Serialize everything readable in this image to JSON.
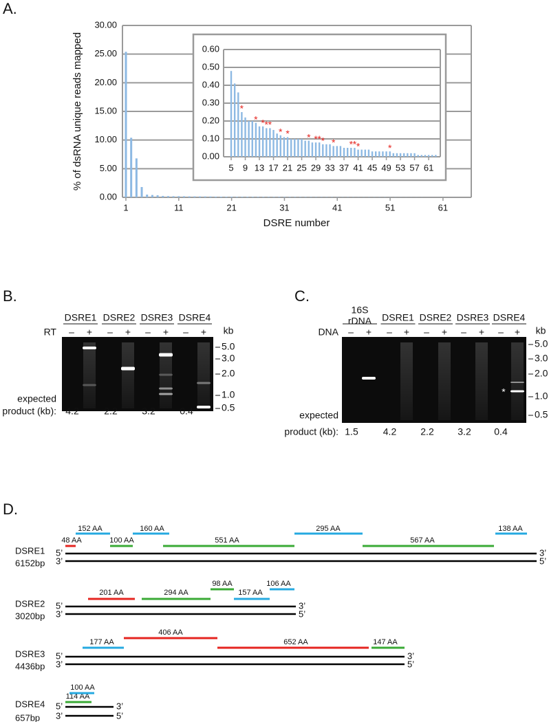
{
  "panels": {
    "a": "A.",
    "b": "B.",
    "c": "C.",
    "d": "D."
  },
  "chart_data": [
    {
      "type": "bar",
      "ylabel": "% of dsRNA unique reads mapped",
      "xlabel": "DSRE number",
      "color": "#8db9e3",
      "grid": true,
      "x": [
        1,
        2,
        3,
        4,
        5,
        6,
        7,
        8,
        9,
        10,
        11,
        12,
        13,
        14,
        15,
        16,
        17,
        18,
        19,
        20,
        21,
        22,
        23,
        24,
        25,
        26,
        27,
        28,
        29,
        30,
        31,
        32,
        33,
        34,
        35,
        36,
        37,
        38,
        39,
        40,
        41,
        42,
        43,
        44,
        45,
        46,
        47,
        48,
        49,
        50,
        51,
        52,
        53,
        54,
        55,
        56,
        57,
        58,
        59,
        60,
        61,
        62,
        63
      ],
      "values": [
        25.4,
        10.4,
        6.8,
        1.8,
        0.48,
        0.41,
        0.36,
        0.25,
        0.22,
        0.2,
        0.2,
        0.19,
        0.17,
        0.17,
        0.16,
        0.16,
        0.15,
        0.13,
        0.12,
        0.11,
        0.11,
        0.1,
        0.1,
        0.1,
        0.1,
        0.09,
        0.09,
        0.08,
        0.08,
        0.08,
        0.07,
        0.07,
        0.07,
        0.06,
        0.06,
        0.06,
        0.05,
        0.05,
        0.05,
        0.05,
        0.04,
        0.04,
        0.04,
        0.04,
        0.03,
        0.03,
        0.03,
        0.03,
        0.03,
        0.03,
        0.02,
        0.02,
        0.02,
        0.02,
        0.02,
        0.02,
        0.02,
        0.01,
        0.01,
        0.01,
        0.01,
        0.01,
        0.01
      ],
      "xlim": [
        0.35,
        66.35
      ],
      "xticks": [
        1,
        11,
        21,
        31,
        41,
        51,
        61
      ],
      "ylim": [
        0,
        30
      ],
      "yticks": [
        {
          "value": 0,
          "label": "0.00"
        },
        {
          "value": 5,
          "label": "5.00"
        },
        {
          "value": 10,
          "label": "10.00"
        },
        {
          "value": 15,
          "label": "15.00"
        },
        {
          "value": 20,
          "label": "20.00"
        },
        {
          "value": 25,
          "label": "25.00"
        },
        {
          "value": 30,
          "label": "30.00"
        }
      ]
    },
    {
      "type": "bar",
      "color": "#8db9e3",
      "grid": true,
      "x": [
        5,
        6,
        7,
        8,
        9,
        10,
        11,
        12,
        13,
        14,
        15,
        16,
        17,
        18,
        19,
        20,
        21,
        22,
        23,
        24,
        25,
        26,
        27,
        28,
        29,
        30,
        31,
        32,
        33,
        34,
        35,
        36,
        37,
        38,
        39,
        40,
        41,
        42,
        43,
        44,
        45,
        46,
        47,
        48,
        49,
        50,
        51,
        52,
        53,
        54,
        55,
        56,
        57,
        58,
        59,
        60,
        61,
        62,
        63
      ],
      "values": [
        0.48,
        0.41,
        0.36,
        0.25,
        0.22,
        0.2,
        0.2,
        0.19,
        0.17,
        0.17,
        0.16,
        0.16,
        0.15,
        0.13,
        0.12,
        0.11,
        0.11,
        0.1,
        0.1,
        0.1,
        0.1,
        0.09,
        0.09,
        0.08,
        0.08,
        0.08,
        0.07,
        0.07,
        0.07,
        0.06,
        0.06,
        0.06,
        0.05,
        0.05,
        0.05,
        0.05,
        0.04,
        0.04,
        0.04,
        0.04,
        0.03,
        0.03,
        0.03,
        0.03,
        0.03,
        0.03,
        0.02,
        0.02,
        0.02,
        0.02,
        0.02,
        0.02,
        0.02,
        0.01,
        0.01,
        0.01,
        0.01,
        0.01,
        0.01
      ],
      "xlim": [
        2.85,
        64.3
      ],
      "xticks": [
        5,
        9,
        13,
        17,
        21,
        25,
        29,
        33,
        37,
        41,
        45,
        49,
        53,
        57,
        61
      ],
      "ylim": [
        0,
        0.6
      ],
      "yticks": [
        {
          "value": 0,
          "label": "0.00"
        },
        {
          "value": 0.1,
          "label": "0.10"
        },
        {
          "value": 0.2,
          "label": "0.20"
        },
        {
          "value": 0.3,
          "label": "0.30"
        },
        {
          "value": 0.4,
          "label": "0.40"
        },
        {
          "value": 0.5,
          "label": "0.50"
        },
        {
          "value": 0.6,
          "label": "0.60"
        }
      ],
      "asterisks": {
        "label": "*",
        "color": "#e52520",
        "x": [
          8,
          12,
          14,
          15,
          16,
          19,
          21,
          27,
          29,
          30,
          31,
          34,
          39,
          40,
          41,
          50
        ]
      }
    }
  ],
  "gels": [
    {
      "lane_label": "RT",
      "minus": "–",
      "plus": "+",
      "unit": "kb",
      "markers": [
        "5.0",
        "3.0",
        "2.0",
        "1.0",
        "0.5"
      ],
      "expected_label": [
        "expected",
        "product (kb):"
      ],
      "groups": [
        {
          "name": [
            "DSRE1"
          ],
          "expected": "4.2"
        },
        {
          "name": [
            "DSRE2"
          ],
          "expected": "2.2"
        },
        {
          "name": [
            "DSRE3"
          ],
          "expected": "3.2"
        },
        {
          "name": [
            "DSRE4"
          ],
          "expected": "0.4"
        }
      ]
    },
    {
      "lane_label": "DNA",
      "minus": "–",
      "plus": "+",
      "unit": "kb",
      "markers": [
        "5.0",
        "3.0",
        "2.0",
        "1.0",
        "0.5"
      ],
      "expected_label": [
        "expected",
        "product (kb):"
      ],
      "note": "*",
      "groups": [
        {
          "name": [
            "16S",
            "rDNA"
          ],
          "expected": "1.5"
        },
        {
          "name": [
            "DSRE1"
          ],
          "expected": "4.2"
        },
        {
          "name": [
            "DSRE2"
          ],
          "expected": "2.2"
        },
        {
          "name": [
            "DSRE3"
          ],
          "expected": "3.2"
        },
        {
          "name": [
            "DSRE4"
          ],
          "expected": "0.4"
        }
      ]
    }
  ],
  "strand_ends": {
    "five": "5’",
    "three": "3’"
  },
  "diagrams": [
    {
      "name": "DSRE1",
      "length": "6152bp",
      "segments": [
        {
          "label": "48 AA",
          "color": "#e52520"
        },
        {
          "label": "152 AA",
          "color": "#25a9e0"
        },
        {
          "label": "100 AA",
          "color": "#3aaa35"
        },
        {
          "label": "160 AA",
          "color": "#25a9e0"
        },
        {
          "label": "551 AA",
          "color": "#3aaa35"
        },
        {
          "label": "295 AA",
          "color": "#25a9e0"
        },
        {
          "label": "567 AA",
          "color": "#3aaa35"
        },
        {
          "label": "138 AA",
          "color": "#25a9e0"
        }
      ]
    },
    {
      "name": "DSRE2",
      "length": "3020bp",
      "segments": [
        {
          "label": "201 AA",
          "color": "#e52520"
        },
        {
          "label": "294 AA",
          "color": "#3aaa35"
        },
        {
          "label": "98 AA",
          "color": "#3aaa35"
        },
        {
          "label": "157 AA",
          "color": "#25a9e0"
        },
        {
          "label": "106 AA",
          "color": "#25a9e0"
        }
      ]
    },
    {
      "name": "DSRE3",
      "length": "4436bp",
      "segments": [
        {
          "label": "177 AA",
          "color": "#25a9e0"
        },
        {
          "label": "406 AA",
          "color": "#e52520"
        },
        {
          "label": "652 AA",
          "color": "#e52520"
        },
        {
          "label": "147 AA",
          "color": "#3aaa35"
        }
      ]
    },
    {
      "name": "DSRE4",
      "length": "657bp",
      "segments": [
        {
          "label": "114 AA",
          "color": "#3aaa35"
        },
        {
          "label": "100 AA",
          "color": "#25a9e0"
        }
      ]
    }
  ]
}
